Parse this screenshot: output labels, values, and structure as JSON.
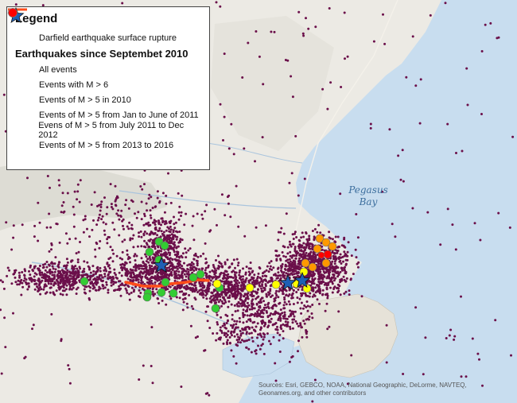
{
  "legend": {
    "title": "Legend",
    "rupture_label": "Darfield earthquake surface rupture",
    "subtitle": "Earthquakes since Septembet 2010",
    "items": [
      {
        "label": "All events",
        "symbol": "dot-icon",
        "color": "#6b0f4a"
      },
      {
        "label": "Events with M > 6",
        "symbol": "star-icon",
        "color": "#1f5fb5"
      },
      {
        "label": "Events of M > 5 in 2010",
        "symbol": "circle-icon",
        "color": "#33cc33"
      },
      {
        "label": "Events of M > 5 from Jan to June of 2011",
        "symbol": "circle-icon",
        "color": "#ffff00"
      },
      {
        "label": "Evens of M > 5 from July 2011 to Dec 2012",
        "symbol": "circle-icon",
        "color": "#ff9900"
      },
      {
        "label": "Events of M > 5 from 2013 to 2016",
        "symbol": "circle-icon",
        "color": "#ff0000"
      }
    ],
    "rupture_color": "#ff4d1a"
  },
  "map": {
    "bay_label_line1": "Pegasus",
    "bay_label_line2": "Bay",
    "sources_text": "Sources: Esri, GEBCO, NOAA, National Geographic, DeLorme, NAVTEQ, Geonames.org, and other contributors",
    "colors": {
      "land": "#eceae4",
      "sea": "#c8ddef",
      "event": "#6b0f4a"
    }
  }
}
